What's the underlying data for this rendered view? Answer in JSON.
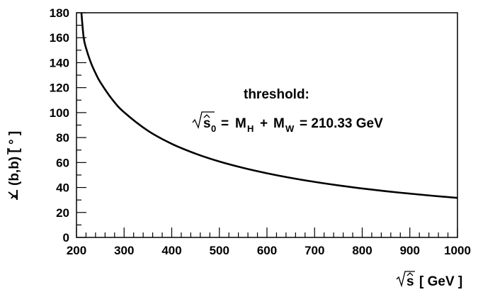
{
  "chart_data": {
    "type": "line",
    "xlabel": "[ GeV ]",
    "ylabel": "(b,b) [ ° ]",
    "xlim": [
      200,
      1000
    ],
    "ylim": [
      0,
      180
    ],
    "x_ticks": [
      200,
      300,
      400,
      500,
      600,
      700,
      800,
      900,
      1000
    ],
    "x_tick_labels": [
      "200",
      "300",
      "400",
      "500",
      "600",
      "700",
      "800",
      "900",
      "1000"
    ],
    "y_ticks": [
      0,
      20,
      40,
      60,
      80,
      100,
      120,
      140,
      160,
      180
    ],
    "y_tick_labels": [
      "0",
      "20",
      "40",
      "60",
      "80",
      "100",
      "120",
      "140",
      "160",
      "180"
    ],
    "grid": false,
    "series": [
      {
        "x": [
          210.33,
          215,
          220,
          230,
          240,
          250,
          275,
          300,
          350,
          400,
          450,
          500,
          550,
          600,
          650,
          700,
          750,
          800,
          850,
          900,
          950,
          1000
        ],
        "y": [
          180,
          160.4,
          151.8,
          140.3,
          131.6,
          124.4,
          110.6,
          100.3,
          85.5,
          75.0,
          67.1,
          60.8,
          55.7,
          51.4,
          47.7,
          44.5,
          41.7,
          39.2,
          37.0,
          35.1,
          33.3,
          31.7
        ]
      }
    ],
    "annotations": {
      "threshold_title": "threshold:",
      "threshold_formula": {
        "lhs_symbol": "s",
        "lhs_sub": "0",
        "equals": "=",
        "m": "M",
        "m_sub_1": "H",
        "plus": "+",
        "m_sub_2": "W",
        "value": "= 210.33 GeV"
      },
      "xlabel_symbol": "s"
    }
  }
}
